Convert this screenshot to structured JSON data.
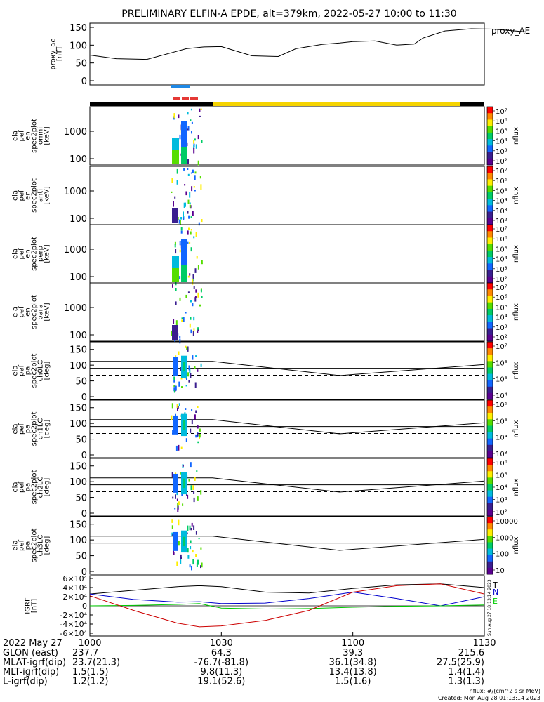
{
  "title": "PRELIMINARY ELFIN-A EPDE, alt=379km, 2022-05-27 10:00 to 11:30",
  "chart_data": [
    {
      "type": "line",
      "ylabel": "proxy_ae [nT]",
      "legend": "proxy_AE",
      "ylim": [
        0,
        150
      ],
      "y_ticks": [
        "150",
        "100",
        "50",
        "0"
      ],
      "x_minutes": [
        0,
        6,
        13,
        22,
        26,
        30,
        37,
        43,
        47,
        53,
        57,
        60,
        65,
        70,
        74,
        76,
        81,
        87,
        92,
        97,
        100
      ],
      "values": [
        72,
        62,
        60,
        90,
        95,
        96,
        70,
        68,
        90,
        102,
        106,
        110,
        112,
        100,
        103,
        120,
        140,
        146,
        145,
        140,
        137
      ]
    },
    {
      "type": "heatmap",
      "ylabel": "ela pef en spec2plot omni [keV]",
      "y_ticks": [
        "1000",
        "100"
      ],
      "colorbar_label": "nflux",
      "colorbar_ticks": [
        "10^7",
        "10^6",
        "10^5",
        "10^4",
        "10^3",
        "10^2"
      ],
      "time_range_min": [
        23.5,
        28.5
      ]
    },
    {
      "type": "heatmap",
      "ylabel": "ela pef en spec2plot anti [keV]",
      "y_ticks": [
        "1000",
        "100"
      ],
      "colorbar_label": "nflux",
      "colorbar_ticks": [
        "10^7",
        "10^6",
        "10^5",
        "10^4",
        "10^3",
        "10^2"
      ],
      "time_range_min": [
        23.5,
        28.5
      ]
    },
    {
      "type": "heatmap",
      "ylabel": "ela pef en spec2plot perp [keV]",
      "y_ticks": [
        "1000",
        "100"
      ],
      "colorbar_label": "nflux",
      "colorbar_ticks": [
        "10^7",
        "10^6",
        "10^5",
        "10^4",
        "10^3",
        "10^2"
      ],
      "time_range_min": [
        23.5,
        28.5
      ]
    },
    {
      "type": "heatmap",
      "ylabel": "ela pef en spec2plot para [keV]",
      "y_ticks": [
        "1000",
        "100"
      ],
      "colorbar_label": "nflux",
      "colorbar_ticks": [
        "10^7",
        "10^6",
        "10^5",
        "10^4",
        "10^3",
        "10^2"
      ],
      "time_range_min": [
        23.5,
        28.5
      ]
    },
    {
      "type": "heatmap",
      "ylabel": "ela pef pa spec2plot ch0LC [deg]",
      "y_ticks": [
        "150",
        "100",
        "50",
        "0"
      ],
      "colorbar_label": "nflux",
      "colorbar_ticks": [
        "10^7",
        "10^6",
        "10^5",
        "10^4"
      ]
    },
    {
      "type": "heatmap",
      "ylabel": "ela pef pa spec2plot ch1LC [deg]",
      "y_ticks": [
        "150",
        "100",
        "50",
        "0"
      ],
      "colorbar_label": "nflux",
      "colorbar_ticks": [
        "10^6",
        "10^5",
        "10^4",
        "10^3"
      ]
    },
    {
      "type": "heatmap",
      "ylabel": "ela pef pa spec2plot ch2LC [deg]",
      "y_ticks": [
        "150",
        "100",
        "50",
        "0"
      ],
      "colorbar_label": "nflux",
      "colorbar_ticks": [
        "10^6",
        "10^5",
        "10^4",
        "10^3",
        "10^2"
      ]
    },
    {
      "type": "heatmap",
      "ylabel": "ela pef pa spec2plot ch3LC [deg]",
      "y_ticks": [
        "150",
        "100",
        "50",
        "0"
      ],
      "colorbar_label": "nflux",
      "colorbar_ticks": [
        "10000",
        "1000",
        "100",
        "10"
      ]
    },
    {
      "type": "line",
      "ylabel": "IGRF [nT]",
      "y_ticks": [
        "6×10^4",
        "4×10^4",
        "2×10^4",
        "0",
        "-2×10^4",
        "-4×10^4",
        "-6×10^4"
      ],
      "ylim": [
        -60000,
        60000
      ],
      "legend": [
        "T",
        "N",
        "E"
      ],
      "x_minutes": [
        0,
        10,
        20,
        25,
        30,
        40,
        50,
        60,
        70,
        80,
        90
      ],
      "series": [
        {
          "name": "T",
          "color": "#000000",
          "values": [
            26000,
            34000,
            42000,
            44000,
            42000,
            30000,
            28000,
            38000,
            46000,
            48000,
            40000
          ]
        },
        {
          "name": "N",
          "color": "#0000cc",
          "values": [
            26000,
            14000,
            8000,
            9000,
            5000,
            6000,
            16000,
            30000,
            16000,
            0,
            20000
          ]
        },
        {
          "name": "E",
          "color": "#00cc00",
          "values": [
            0,
            1000,
            3000,
            5000,
            -5000,
            -7000,
            -6000,
            -3000,
            -1000,
            0,
            2000
          ]
        },
        {
          "name": "",
          "color": "#cc0000",
          "values": [
            22000,
            -10000,
            -38000,
            -46000,
            -44000,
            -32000,
            -10000,
            30000,
            44000,
            48000,
            26000
          ]
        }
      ]
    }
  ],
  "x_axis": {
    "tick_labels": [
      "1000",
      "1030",
      "1100",
      "1130"
    ],
    "date": "2022 May 27",
    "rows": [
      {
        "label": "GLON (east)",
        "values": [
          "237.7",
          "64.3",
          "39.3",
          "215.6"
        ]
      },
      {
        "label": "MLAT-igrf(dip)",
        "values": [
          "23.7(21.3)",
          "-76.7(-81.8)",
          "36.1(34.8)",
          "27.5(25.9)"
        ]
      },
      {
        "label": "MLT-igrf(dip)",
        "values": [
          "1.5(1.5)",
          "9.8(11.3)",
          "13.4(13.8)",
          "1.4(1.4)"
        ]
      },
      {
        "label": "L-igrf(dip)",
        "values": [
          "1.2(1.2)",
          "19.1(52.6)",
          "1.5(1.6)",
          "1.3(1.3)"
        ]
      }
    ]
  },
  "footer": {
    "units": "nflux: #/(cm^2 s sr MeV)",
    "created": "Created: Mon Aug 28 01:13:14 2023",
    "side_stamp": "Sun Aug 27 18:13:14 2023"
  }
}
